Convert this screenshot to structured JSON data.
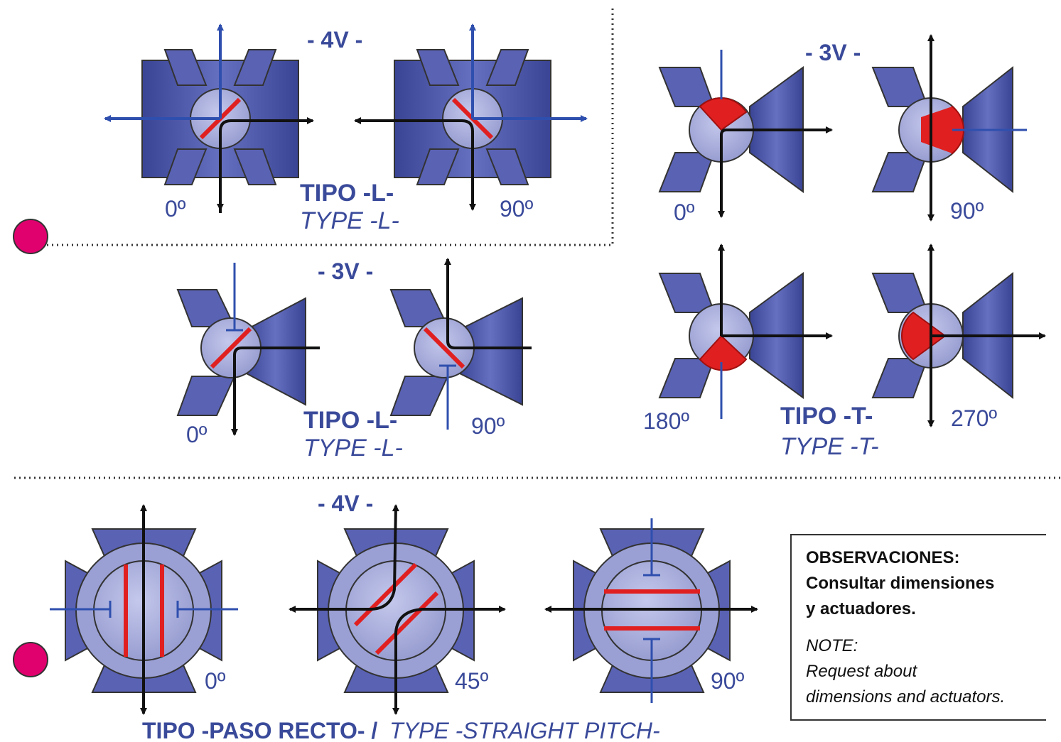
{
  "sections": {
    "l4v": {
      "title": "- 4V -",
      "type_es": "TIPO -L-",
      "type_en": "TYPE -L-",
      "angles": [
        "0º",
        "90º"
      ]
    },
    "l3v": {
      "title": "- 3V -",
      "type_es": "TIPO -L-",
      "type_en": "TYPE -L-",
      "angles": [
        "0º",
        "90º"
      ]
    },
    "t3v": {
      "title": "- 3V -",
      "type_es": "TIPO -T-",
      "type_en": "TYPE -T-",
      "angles": [
        "0º",
        "90º",
        "180º",
        "270º"
      ]
    },
    "straight4v": {
      "title": "- 4V -",
      "type_es": "TIPO -PASO RECTO- /",
      "type_en": "TYPE -STRAIGHT PITCH-",
      "angles": [
        "0º",
        "45º",
        "90º"
      ]
    }
  },
  "notes": {
    "obs_lines": [
      "OBSERVACIONES:",
      "Consultar dimensiones",
      "y actuadores."
    ],
    "note_lines": [
      "NOTE:",
      "Request about",
      "dimensions and actuators."
    ]
  },
  "colors": {
    "body": "#4a54a8",
    "ball": "#aab0dc",
    "seal": "#e02020",
    "arrow": "#111111",
    "flow_blue": "#3050b0",
    "marker": "#e0006e"
  }
}
